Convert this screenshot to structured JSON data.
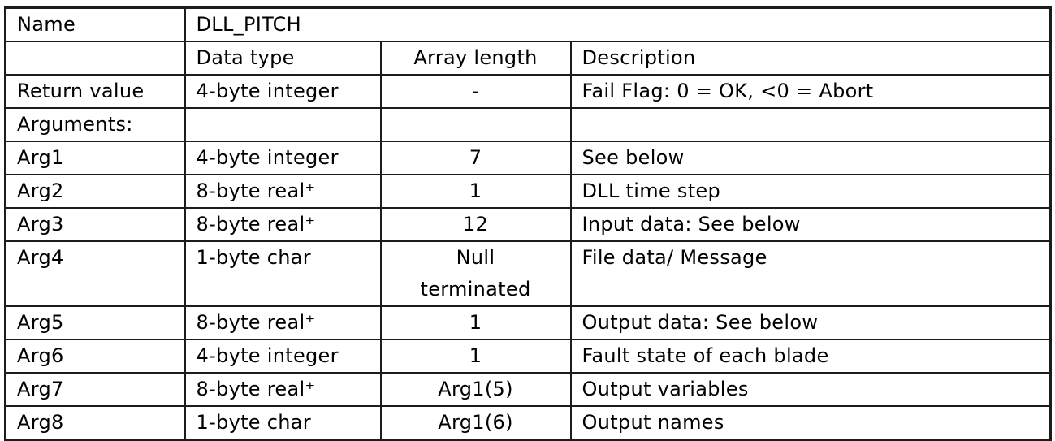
{
  "page": {
    "background_color": "#ffffff",
    "border_color": "#1c1c1c",
    "text_color": "#000000"
  },
  "table": {
    "title_row": {
      "label": "Name",
      "value": "DLL_PITCH"
    },
    "header_row": {
      "name": "",
      "data_type": "Data type",
      "array_length": "Array length",
      "description": "Description"
    },
    "rows": [
      {
        "name": "Return value",
        "data_type": "4-byte integer",
        "array_length": "-",
        "description": "Fail Flag: 0 = OK, <0 = Abort"
      },
      {
        "name": "Arguments:",
        "data_type": "",
        "array_length": "",
        "description": ""
      },
      {
        "name": "Arg1",
        "data_type": "4-byte integer",
        "array_length": "7",
        "description": "See below"
      },
      {
        "name": "Arg2",
        "data_type": "8-byte real⁺",
        "array_length": "1",
        "description": "DLL time step"
      },
      {
        "name": "Arg3",
        "data_type": "8-byte real⁺",
        "array_length": "12",
        "description": "Input data: See below"
      },
      {
        "name": "Arg4",
        "data_type": "1-byte char",
        "array_length": "Null\nterminated",
        "description": "File data/ Message"
      },
      {
        "name": "Arg5",
        "data_type": "8-byte real⁺",
        "array_length": "1",
        "description": "Output data: See below"
      },
      {
        "name": "Arg6",
        "data_type": "4-byte integer",
        "array_length": "1",
        "description": "Fault state of each blade"
      },
      {
        "name": "Arg7",
        "data_type": "8-byte real⁺",
        "array_length": "Arg1(5)",
        "description": "Output variables"
      },
      {
        "name": "Arg8",
        "data_type": "1-byte char",
        "array_length": "Arg1(6)",
        "description": "Output names"
      }
    ]
  }
}
